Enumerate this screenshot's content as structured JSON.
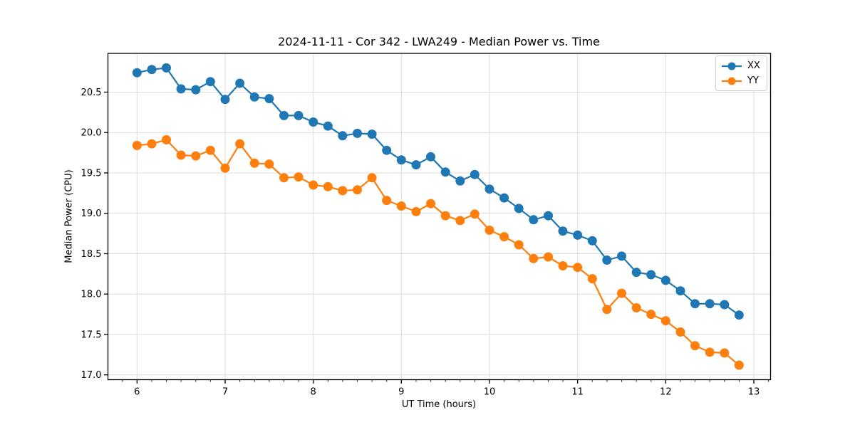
{
  "figure": {
    "background": "#ffffff"
  },
  "chart_data": {
    "type": "line",
    "title": "2024-11-11 - Cor 342 - LWA249 - Median Power vs. Time",
    "xlabel": "UT Time (hours)",
    "ylabel": "Median Power (CPU)",
    "xlim": [
      5.67,
      13.19
    ],
    "ylim": [
      16.94,
      20.98
    ],
    "x_ticks": [
      6,
      7,
      8,
      9,
      10,
      11,
      12,
      13
    ],
    "y_ticks": [
      17.0,
      17.5,
      18.0,
      18.5,
      19.0,
      19.5,
      20.0,
      20.5
    ],
    "x_minor_tick_step": 0.16667,
    "grid": "major-only",
    "legend_position": "upper-right",
    "x": [
      6.0,
      6.167,
      6.333,
      6.5,
      6.667,
      6.833,
      7.0,
      7.167,
      7.333,
      7.5,
      7.667,
      7.833,
      8.0,
      8.167,
      8.333,
      8.5,
      8.667,
      8.833,
      9.0,
      9.167,
      9.333,
      9.5,
      9.667,
      9.833,
      10.0,
      10.167,
      10.333,
      10.5,
      10.667,
      10.833,
      11.0,
      11.167,
      11.333,
      11.5,
      11.667,
      11.833,
      12.0,
      12.167,
      12.333,
      12.5,
      12.667,
      12.833
    ],
    "series": [
      {
        "name": "XX",
        "color": "#1f77b4",
        "values": [
          20.74,
          20.78,
          20.8,
          20.54,
          20.53,
          20.63,
          20.41,
          20.61,
          20.44,
          20.42,
          20.21,
          20.21,
          20.13,
          20.08,
          19.96,
          19.99,
          19.98,
          19.78,
          19.66,
          19.6,
          19.7,
          19.51,
          19.4,
          19.48,
          19.3,
          19.19,
          19.06,
          18.92,
          18.97,
          18.78,
          18.73,
          18.66,
          18.42,
          18.47,
          18.27,
          18.24,
          18.17,
          18.04,
          17.88,
          17.88,
          17.87,
          17.74
        ]
      },
      {
        "name": "YY",
        "color": "#ff7f0e",
        "values": [
          19.84,
          19.86,
          19.91,
          19.72,
          19.71,
          19.78,
          19.56,
          19.86,
          19.62,
          19.61,
          19.44,
          19.45,
          19.35,
          19.33,
          19.28,
          19.29,
          19.44,
          19.16,
          19.09,
          19.02,
          19.12,
          18.97,
          18.91,
          18.99,
          18.79,
          18.71,
          18.61,
          18.44,
          18.46,
          18.35,
          18.33,
          18.19,
          17.81,
          18.01,
          17.83,
          17.75,
          17.67,
          17.53,
          17.36,
          17.28,
          17.27,
          17.12
        ]
      }
    ],
    "style": {
      "grid_color": "#dcdcdc",
      "spine_color": "#000000",
      "tick_color": "#000000",
      "text_color": "#000000",
      "marker_radius": 6.5,
      "line_width": 2.2
    }
  }
}
